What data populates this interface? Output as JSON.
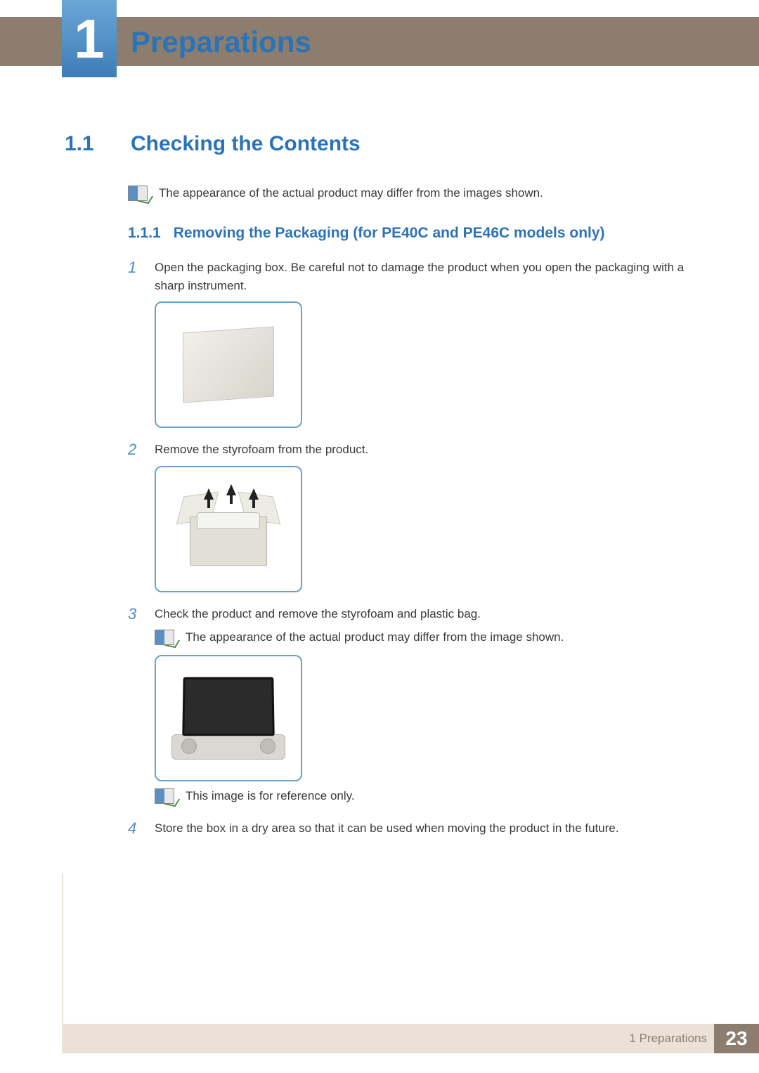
{
  "colors": {
    "accent_blue": "#2b73b7",
    "top_bar_bg": "#8d7d6e",
    "footer_bg": "#ebe1d6",
    "body_text": "#3a3a3a",
    "step_num": "#4f8cc6",
    "frame_border": "#6aa0d1"
  },
  "chapter": {
    "number": "1",
    "title": "Preparations"
  },
  "section": {
    "number": "1.1",
    "title": "Checking the Contents",
    "note": "The appearance of the actual product may differ from the images shown."
  },
  "subsection": {
    "number": "1.1.1",
    "title": "Removing the Packaging (for PE40C and PE46C models only)"
  },
  "steps": [
    {
      "num": "1",
      "text": "Open the packaging box. Be careful not to damage the product when you open the packaging with a sharp instrument.",
      "figure": "closed-box"
    },
    {
      "num": "2",
      "text": "Remove the styrofoam from the product.",
      "figure": "open-box-arrows"
    },
    {
      "num": "3",
      "text": "Check the product and remove the styrofoam and plastic bag.",
      "figure": "monitor",
      "notes": [
        "The appearance of the actual product may differ from the image shown.",
        "This image is for reference only."
      ]
    },
    {
      "num": "4",
      "text": "Store the box in a dry area so that it can be used when moving the product in the future."
    }
  ],
  "footer": {
    "text": "1 Preparations",
    "page": "23"
  }
}
